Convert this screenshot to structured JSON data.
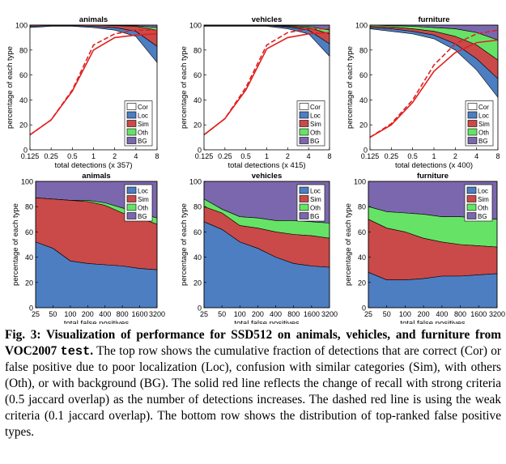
{
  "figure": {
    "caption_label": "Fig. 3:",
    "caption_bold_a": "Visualization of performance for SSD512 on animals, vehicles, and furniture from VOC2007",
    "caption_bold_code": "test",
    "caption_bold_b": ".",
    "caption_body": "The top row shows the cumulative fraction of detections that are correct (Cor) or false positive due to poor localization (Loc), confusion with similar categories (Sim), with others (Oth), or with background (BG). The solid red line reflects the change of recall with strong criteria (0.5 jaccard overlap) as the number of detections increases. The dashed red line is using the weak criteria (0.1 jaccard overlap). The bottom row shows the distribution of top-ranked false positive types."
  },
  "colors": {
    "Cor": "#ffffff",
    "Loc": "#4d7ec2",
    "Sim": "#c94a49",
    "Oth": "#66e366",
    "BG": "#7b67ad",
    "recall": "#e02020"
  },
  "chart_data": [
    {
      "type": "area",
      "row": "top",
      "title": "animals",
      "xlabel": "total detections (x 357)",
      "ylabel": "percentage of each type",
      "x": [
        0.125,
        0.25,
        0.5,
        1,
        2,
        4,
        8
      ],
      "xticks": [
        "0.125",
        "0.25",
        "0.5",
        "1",
        "2",
        "4",
        "8"
      ],
      "ylim": [
        0,
        100
      ],
      "yticks": [
        "0",
        "20",
        "40",
        "60",
        "80",
        "100"
      ],
      "legend": [
        "Cor",
        "Loc",
        "Sim",
        "Oth",
        "BG"
      ],
      "legend_position": "lower-right",
      "series_cumulative": [
        {
          "name": "Cor",
          "values": [
            98,
            99,
            99,
            98,
            96,
            91,
            70
          ]
        },
        {
          "name": "Loc",
          "values": [
            99,
            99.5,
            99.5,
            99,
            98,
            95,
            83
          ]
        },
        {
          "name": "Sim",
          "values": [
            100,
            100,
            100,
            100,
            99.5,
            99,
            96
          ]
        },
        {
          "name": "Oth",
          "values": [
            100,
            100,
            100,
            100,
            99.7,
            99.5,
            98
          ]
        },
        {
          "name": "BG",
          "values": [
            100,
            100,
            100,
            100,
            100,
            100,
            100
          ]
        }
      ],
      "recall_strong": [
        12,
        24,
        47,
        80,
        90,
        92,
        93
      ],
      "recall_weak": [
        12,
        24,
        48,
        84,
        93,
        96,
        96
      ]
    },
    {
      "type": "area",
      "row": "top",
      "title": "vehicles",
      "xlabel": "total detections (x 415)",
      "ylabel": "percentage of each type",
      "x": [
        0.125,
        0.25,
        0.5,
        1,
        2,
        4,
        8
      ],
      "xticks": [
        "0.125",
        "0.25",
        "0.5",
        "1",
        "2",
        "4",
        "8"
      ],
      "ylim": [
        0,
        100
      ],
      "yticks": [
        "0",
        "20",
        "40",
        "60",
        "80",
        "100"
      ],
      "legend": [
        "Cor",
        "Loc",
        "Sim",
        "Oth",
        "BG"
      ],
      "legend_position": "lower-right",
      "series_cumulative": [
        {
          "name": "Cor",
          "values": [
            99,
            99,
            99,
            99,
            97,
            93,
            75
          ]
        },
        {
          "name": "Loc",
          "values": [
            99.5,
            99.5,
            99.5,
            99.5,
            98.5,
            96,
            85
          ]
        },
        {
          "name": "Sim",
          "values": [
            100,
            100,
            100,
            100,
            99,
            98,
            93
          ]
        },
        {
          "name": "Oth",
          "values": [
            100,
            100,
            100,
            100,
            99.5,
            99,
            96
          ]
        },
        {
          "name": "BG",
          "values": [
            100,
            100,
            100,
            100,
            100,
            100,
            100
          ]
        }
      ],
      "recall_strong": [
        12,
        25,
        48,
        81,
        90,
        93,
        94
      ],
      "recall_weak": [
        12,
        25,
        50,
        84,
        94,
        97,
        97
      ]
    },
    {
      "type": "area",
      "row": "top",
      "title": "furniture",
      "xlabel": "total detections (x 400)",
      "ylabel": "percentage of each type",
      "x": [
        0.125,
        0.25,
        0.5,
        1,
        2,
        4,
        8
      ],
      "xticks": [
        "0.125",
        "0.25",
        "0.5",
        "1",
        "2",
        "4",
        "8"
      ],
      "ylim": [
        0,
        100
      ],
      "yticks": [
        "0",
        "20",
        "40",
        "60",
        "80",
        "100"
      ],
      "legend": [
        "Cor",
        "Loc",
        "Sim",
        "Oth",
        "BG"
      ],
      "legend_position": "lower-right",
      "series_cumulative": [
        {
          "name": "Cor",
          "values": [
            97,
            95,
            93,
            89,
            80,
            64,
            42
          ]
        },
        {
          "name": "Loc",
          "values": [
            98,
            97,
            95,
            92,
            85,
            73,
            57
          ]
        },
        {
          "name": "Sim",
          "values": [
            99,
            98.5,
            97,
            95,
            91,
            84,
            72
          ]
        },
        {
          "name": "Oth",
          "values": [
            100,
            99.5,
            99,
            98,
            97,
            94,
            88
          ]
        },
        {
          "name": "BG",
          "values": [
            100,
            100,
            100,
            100,
            100,
            100,
            100
          ]
        }
      ],
      "recall_strong": [
        10,
        20,
        38,
        63,
        78,
        86,
        88
      ],
      "recall_weak": [
        10,
        21,
        40,
        68,
        85,
        93,
        96
      ]
    },
    {
      "type": "area",
      "row": "bottom",
      "title": "animals",
      "xlabel": "total false positives",
      "ylabel": "percentage of each type",
      "x": [
        25,
        50,
        100,
        200,
        400,
        800,
        1600,
        3200
      ],
      "xticks": [
        "25",
        "50",
        "100",
        "200",
        "400",
        "800",
        "1600",
        "3200"
      ],
      "ylim": [
        0,
        100
      ],
      "yticks": [
        "0",
        "20",
        "40",
        "60",
        "80",
        "100"
      ],
      "legend": [
        "Loc",
        "Sim",
        "Oth",
        "BG"
      ],
      "legend_position": "top-right",
      "series_cumulative": [
        {
          "name": "Loc",
          "values": [
            52,
            47,
            37,
            35,
            34,
            33,
            31,
            30
          ]
        },
        {
          "name": "Sim",
          "values": [
            87,
            86,
            85,
            84,
            81,
            75,
            71,
            66
          ]
        },
        {
          "name": "Oth",
          "values": [
            87,
            86,
            85,
            85,
            83,
            79,
            75,
            71
          ]
        },
        {
          "name": "BG",
          "values": [
            100,
            100,
            100,
            100,
            100,
            100,
            100,
            100
          ]
        }
      ]
    },
    {
      "type": "area",
      "row": "bottom",
      "title": "vehicles",
      "xlabel": "total false positives",
      "ylabel": "percentage of each type",
      "x": [
        25,
        50,
        100,
        200,
        400,
        800,
        1600,
        3200
      ],
      "xticks": [
        "25",
        "50",
        "100",
        "200",
        "400",
        "800",
        "1600",
        "3200"
      ],
      "ylim": [
        0,
        100
      ],
      "yticks": [
        "0",
        "20",
        "40",
        "60",
        "80",
        "100"
      ],
      "legend": [
        "Loc",
        "Sim",
        "Oth",
        "BG"
      ],
      "legend_position": "top-right",
      "series_cumulative": [
        {
          "name": "Loc",
          "values": [
            68,
            62,
            52,
            47,
            40,
            35,
            33,
            32
          ]
        },
        {
          "name": "Sim",
          "values": [
            80,
            75,
            65,
            63,
            60,
            58,
            57,
            55
          ]
        },
        {
          "name": "Oth",
          "values": [
            86,
            78,
            72,
            71,
            69,
            69,
            68,
            67
          ]
        },
        {
          "name": "BG",
          "values": [
            100,
            100,
            100,
            100,
            100,
            100,
            100,
            100
          ]
        }
      ]
    },
    {
      "type": "area",
      "row": "bottom",
      "title": "furniture",
      "xlabel": "total false positives",
      "ylabel": "percentage of each type",
      "x": [
        25,
        50,
        100,
        200,
        400,
        800,
        1600,
        3200
      ],
      "xticks": [
        "25",
        "50",
        "100",
        "200",
        "400",
        "800",
        "1600",
        "3200"
      ],
      "ylim": [
        0,
        100
      ],
      "yticks": [
        "0",
        "20",
        "40",
        "60",
        "80",
        "100"
      ],
      "legend": [
        "Loc",
        "Sim",
        "Oth",
        "BG"
      ],
      "legend_position": "top-right",
      "series_cumulative": [
        {
          "name": "Loc",
          "values": [
            28,
            22,
            22,
            23,
            25,
            25,
            26,
            27
          ]
        },
        {
          "name": "Sim",
          "values": [
            70,
            63,
            60,
            55,
            52,
            50,
            49,
            48
          ]
        },
        {
          "name": "Oth",
          "values": [
            80,
            76,
            75,
            74,
            72,
            72,
            71,
            70
          ]
        },
        {
          "name": "BG",
          "values": [
            100,
            100,
            100,
            100,
            100,
            100,
            100,
            100
          ]
        }
      ]
    }
  ]
}
